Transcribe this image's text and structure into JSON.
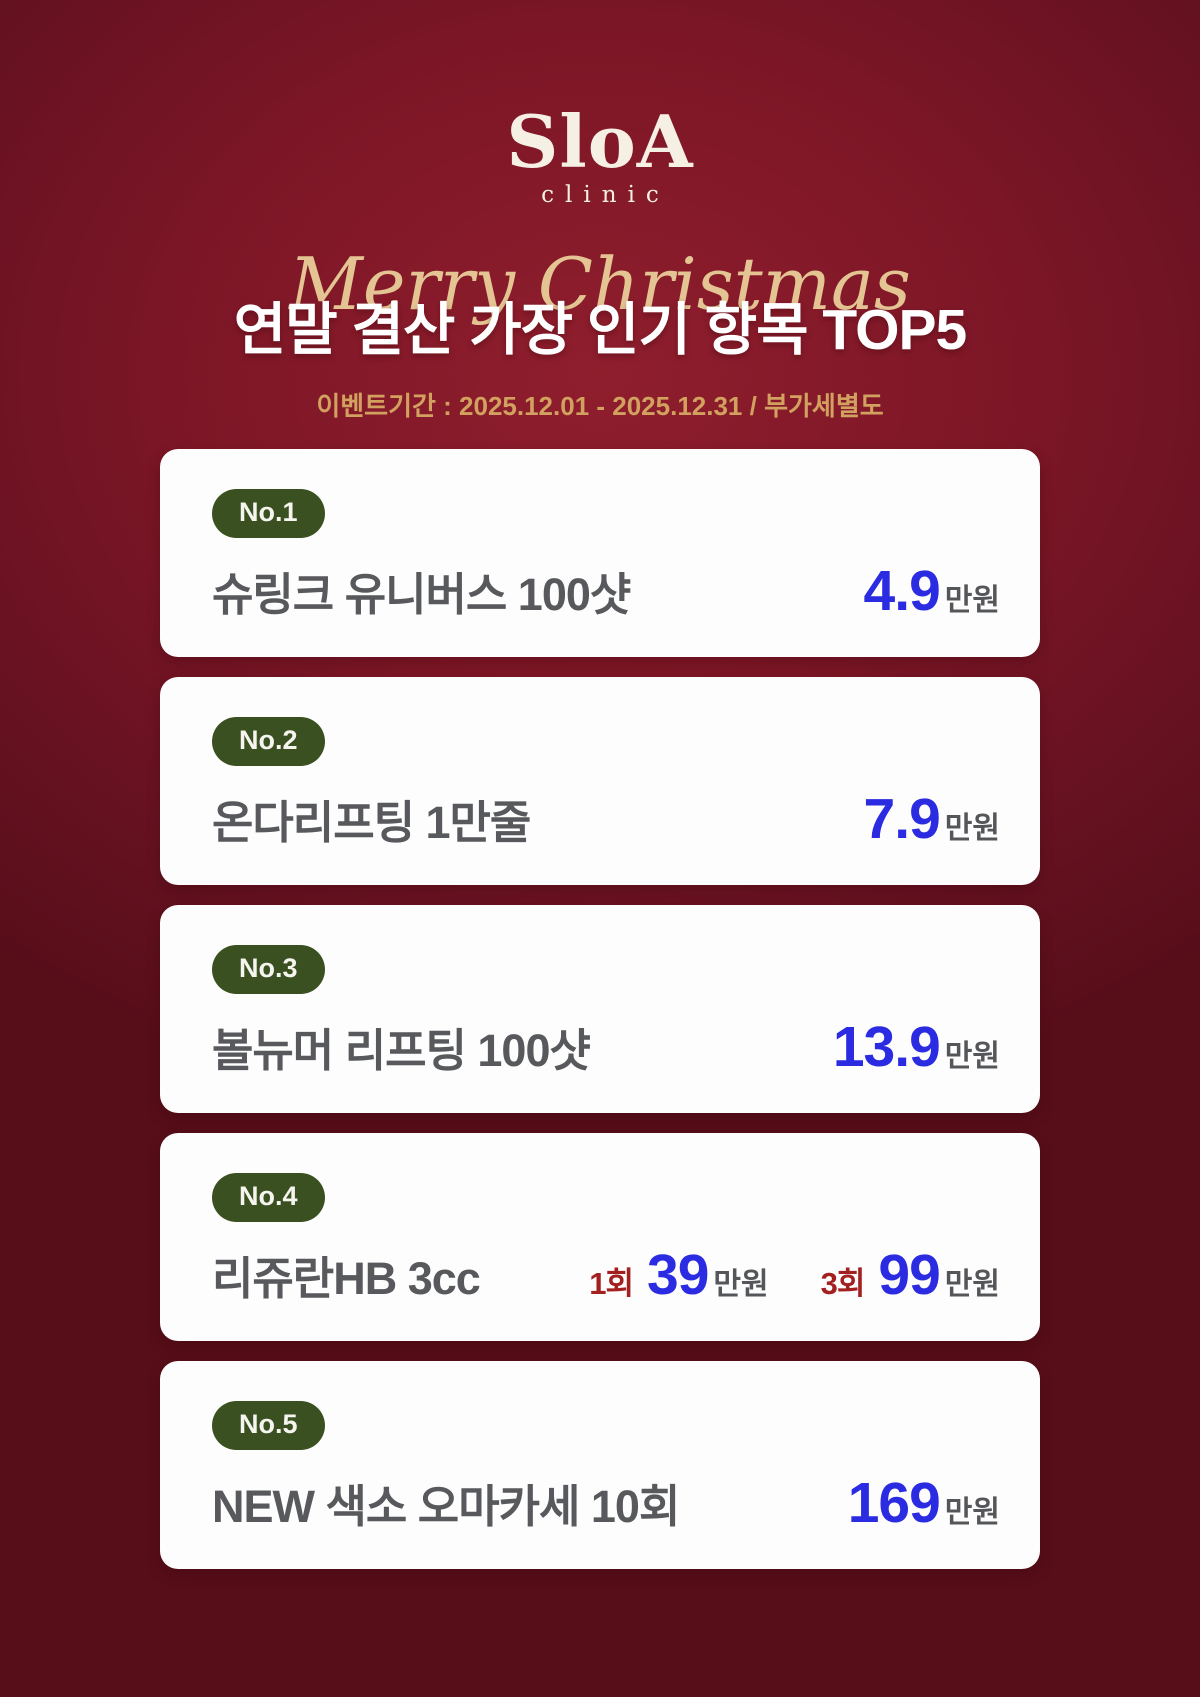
{
  "logo": {
    "brand": "SloA",
    "sub": "clinic"
  },
  "header": {
    "script_title": "Merry Christmas",
    "main_title": "연말 결산 가장 인기 항목 TOP5",
    "event_period": "이벤트기간 : 2025.12.01 - 2025.12.31 / 부가세별도"
  },
  "colors": {
    "background_maroon": "#7c1626",
    "gold_script": "#e3c492",
    "gold_event_text": "#d2a05f",
    "badge_green": "#3a5020",
    "price_blue": "#2b2be1",
    "price_label_red": "#a32021",
    "item_text_gray": "#58595c",
    "card_white": "#fdfdfd"
  },
  "items": [
    {
      "rank": "No.1",
      "name": "슈링크 유니버스 100샷",
      "prices": [
        {
          "value": "4.9",
          "unit": "만원"
        }
      ]
    },
    {
      "rank": "No.2",
      "name": "온다리프팅 1만줄",
      "prices": [
        {
          "value": "7.9",
          "unit": "만원"
        }
      ]
    },
    {
      "rank": "No.3",
      "name": "볼뉴머 리프팅 100샷",
      "prices": [
        {
          "value": "13.9",
          "unit": "만원"
        }
      ]
    },
    {
      "rank": "No.4",
      "name": "리쥬란HB 3cc",
      "prices": [
        {
          "label": "1회",
          "value": "39",
          "unit": "만원"
        },
        {
          "label": "3회",
          "value": "99",
          "unit": "만원"
        }
      ]
    },
    {
      "rank": "No.5",
      "name": "NEW 색소 오마카세 10회",
      "prices": [
        {
          "value": "169",
          "unit": "만원"
        }
      ]
    }
  ]
}
